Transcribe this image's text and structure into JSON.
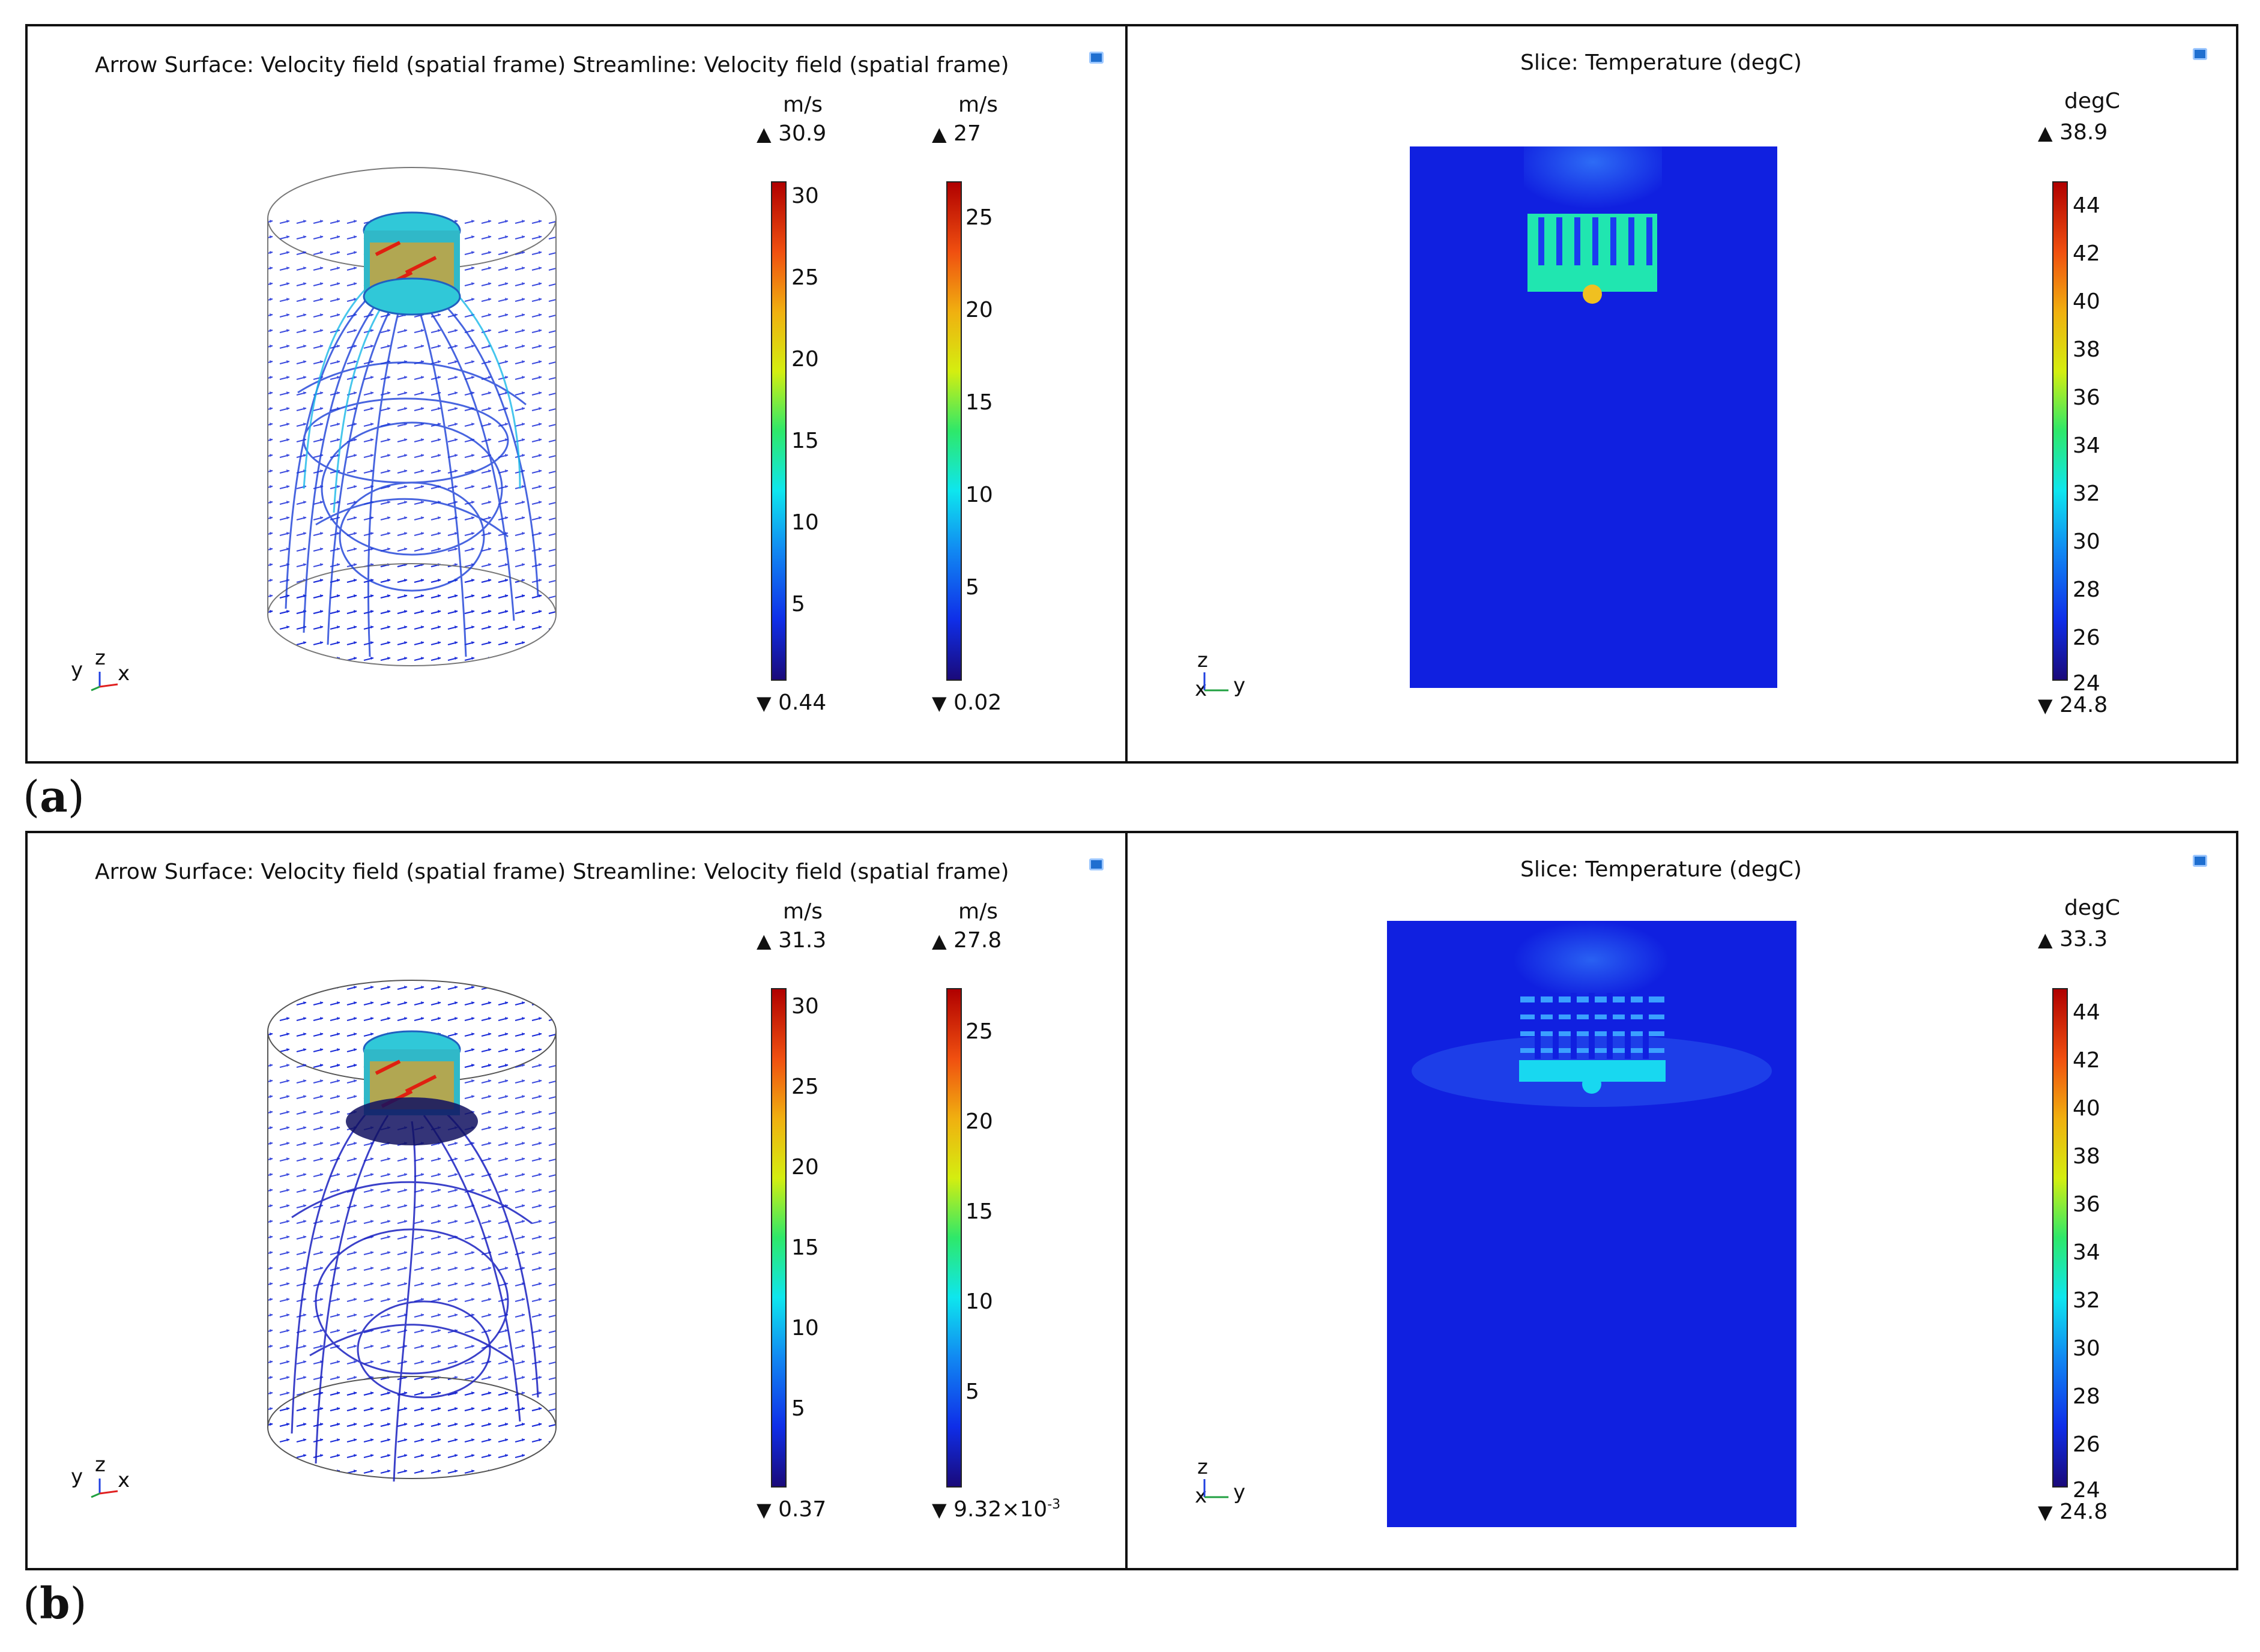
{
  "panels": [
    {
      "label": "a",
      "left_title": "Arrow Surface: Velocity field (spatial frame)  Streamline: Velocity field (spatial frame)",
      "arrow_bar": {
        "unit": "m/s",
        "max": "30.9",
        "min": "0.44",
        "ticks": [
          "30",
          "25",
          "20",
          "15",
          "10",
          "5"
        ]
      },
      "stream_bar": {
        "unit": "m/s",
        "max": "27",
        "min": "0.02",
        "ticks": [
          "25",
          "20",
          "15",
          "10",
          "5"
        ]
      },
      "left_axes": {
        "labels": [
          "y",
          "z",
          "x"
        ]
      },
      "right_title": "Slice: Temperature (degC)",
      "temp_bar": {
        "unit": "degC",
        "max": "38.9",
        "min": "24.8",
        "ticks": [
          "44",
          "42",
          "40",
          "38",
          "36",
          "34",
          "32",
          "30",
          "28",
          "26",
          "24"
        ]
      },
      "right_axes": {
        "labels": [
          "z",
          "x",
          "y"
        ]
      }
    },
    {
      "label": "b",
      "left_title": "Arrow Surface: Velocity field (spatial frame)  Streamline: Velocity field (spatial frame)",
      "arrow_bar": {
        "unit": "m/s",
        "max": "31.3",
        "min": "0.37",
        "ticks": [
          "30",
          "25",
          "20",
          "15",
          "10",
          "5"
        ]
      },
      "stream_bar": {
        "unit": "m/s",
        "max": "27.8",
        "min_base": "9.32×10",
        "min_exp": "-3",
        "ticks": [
          "25",
          "20",
          "15",
          "10",
          "5"
        ]
      },
      "left_axes": {
        "labels": [
          "y",
          "z",
          "x"
        ]
      },
      "right_title": "Slice: Temperature (degC)",
      "temp_bar": {
        "unit": "degC",
        "max": "33.3",
        "min": "24.8",
        "ticks": [
          "44",
          "42",
          "40",
          "38",
          "36",
          "34",
          "32",
          "30",
          "28",
          "26",
          "24"
        ]
      },
      "right_axes": {
        "labels": [
          "z",
          "x",
          "y"
        ]
      }
    }
  ],
  "colors": {
    "domain_blue": "#1020e0",
    "heatsink_cyan_a": "#20e6b0",
    "heatsink_cyan_b": "#18d8f0",
    "stream_blue": "#1030d0"
  },
  "icons": {
    "max_marker": "triangle-up",
    "min_marker": "triangle-down",
    "corner": "graphics-window-icon"
  }
}
